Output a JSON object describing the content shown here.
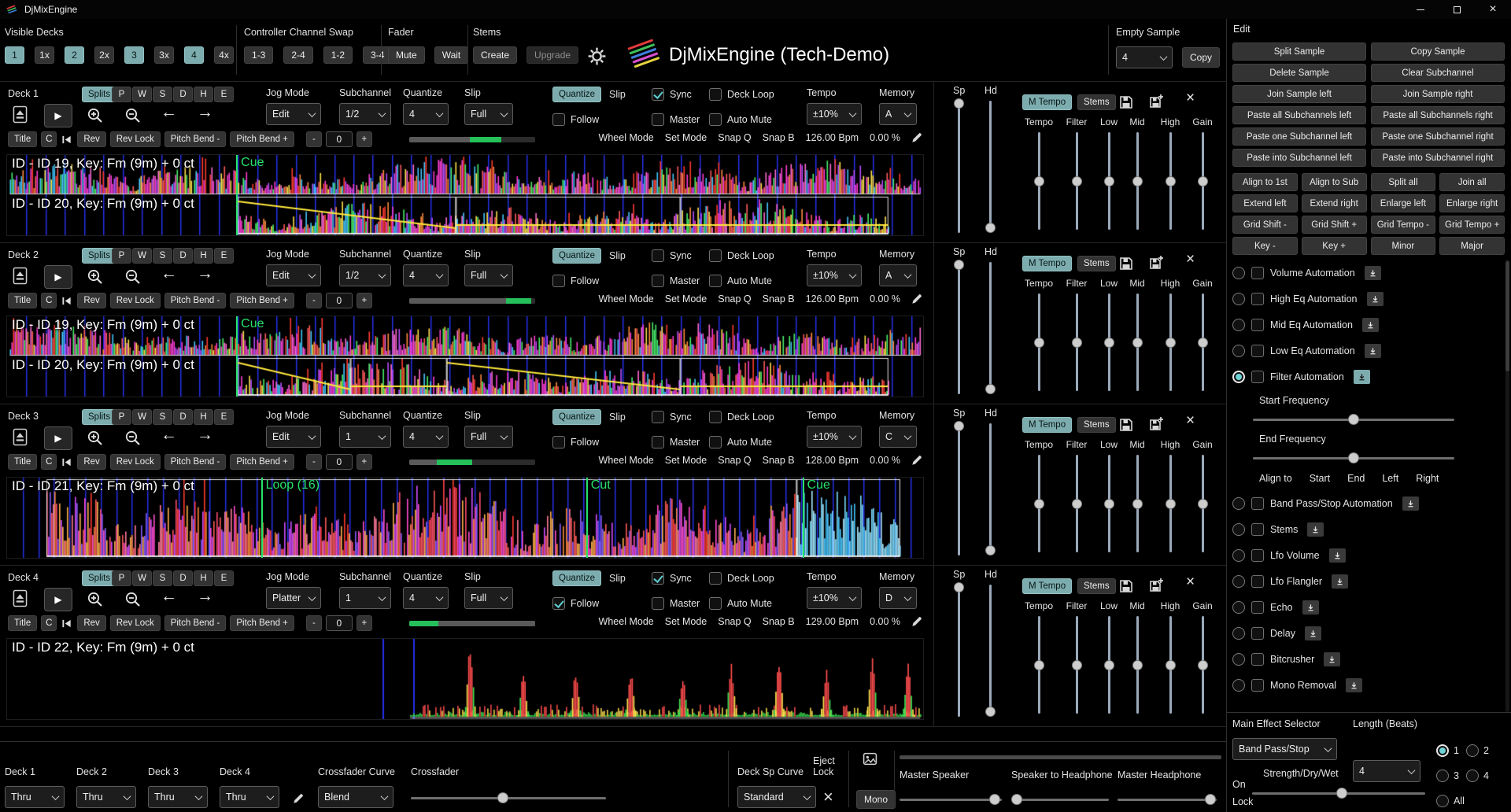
{
  "colors": {
    "accent": "#7cacae",
    "green": "#25c05a",
    "marker_green": "#27e26b",
    "grid_blue": "#2531e8",
    "yellow": "#ffe83d"
  },
  "icons": {
    "play": "▶",
    "close": "×",
    "arrow_left": "←",
    "arrow_right": "→"
  },
  "titlebar": {
    "title": "DjMixEngine"
  },
  "topbar": {
    "visible_decks": {
      "label": "Visible Decks",
      "buttons": [
        {
          "label": "1",
          "active": true
        },
        {
          "label": "1x",
          "active": false
        },
        {
          "label": "2",
          "active": true
        },
        {
          "label": "2x",
          "active": false
        },
        {
          "label": "3",
          "active": true
        },
        {
          "label": "3x",
          "active": false
        },
        {
          "label": "4",
          "active": true
        },
        {
          "label": "4x",
          "active": false
        }
      ]
    },
    "controller_swap": {
      "label": "Controller Channel Swap",
      "buttons": [
        "1-3",
        "2-4",
        "1-2",
        "3-4"
      ]
    },
    "fader": {
      "label": "Fader",
      "buttons": [
        "Mute",
        "Wait"
      ]
    },
    "stems": {
      "label": "Stems",
      "buttons": [
        {
          "label": "Create",
          "enabled": true
        },
        {
          "label": "Upgrade",
          "enabled": false
        }
      ]
    },
    "app_title": "DjMixEngine (Tech-Demo)",
    "empty_sample": {
      "label": "Empty Sample",
      "value": "4",
      "copy_label": "Copy"
    }
  },
  "deck_common": {
    "splits": "Splits",
    "letters": [
      "P",
      "W",
      "S",
      "D",
      "H",
      "E"
    ],
    "jog_mode_label": "Jog Mode",
    "subchannel_label": "Subchannel",
    "quantize_label": "Quantize",
    "slip_label": "Slip",
    "quantize_button": "Quantize",
    "slip_tag": "Slip",
    "sync": "Sync",
    "deck_loop": "Deck Loop",
    "follow": "Follow",
    "master": "Master",
    "auto_mute": "Auto Mute",
    "tempo_label": "Tempo",
    "memory_label": "Memory",
    "row3a": [
      "Title",
      "C"
    ],
    "row3b": [
      "Rev",
      "Rev Lock",
      "Pitch Bend -",
      "Pitch Bend +"
    ],
    "minus": "-",
    "pitch_value": "0",
    "plus": "+",
    "status": [
      "Wheel Mode",
      "Set Mode",
      "Snap Q",
      "Snap B"
    ],
    "mixer": {
      "sp": "Sp",
      "hd": "Hd",
      "m_tempo": "M Tempo",
      "stems": "Stems",
      "sliders": [
        "Tempo",
        "Filter",
        "Low",
        "Mid",
        "High",
        "Gain"
      ]
    },
    "mixer_positions": {
      "sp": 0.02,
      "hd": 0.96,
      "channels": 0.5
    }
  },
  "decks": [
    {
      "name": "Deck 1",
      "jog_mode": "Edit",
      "subchannel": "1/2",
      "quantize": "4",
      "slip": "Full",
      "sync": true,
      "deck_loop": false,
      "follow": false,
      "master": false,
      "auto_mute": false,
      "tempo_range": "±10%",
      "memory": "A",
      "bpm": "126.00 Bpm",
      "pitch_pct": "0.00 %",
      "progress_segments": [
        [
          0,
          0.48,
          "#5a5a5a"
        ],
        [
          0.48,
          0.73,
          "#25c05a"
        ],
        [
          0.73,
          1,
          "#2b2b2b"
        ]
      ],
      "waveform": {
        "type": "dual",
        "seed": 11,
        "grid_step": 0.021,
        "palette": [
          "#ff3fd8",
          "#ff3fd8",
          "#ff5a5a",
          "#ffe14d",
          "#49f06a",
          "#45c8ff",
          "#b84dff",
          "#ff8a3d",
          "#ff6ad5"
        ],
        "tracks": [
          {
            "label": "ID - ID 19, Key: Fm (9m) + 0 ct",
            "start": 0.003,
            "end": 0.997
          },
          {
            "label": "ID - ID 20, Key: Fm (9m) + 0 ct",
            "start": 0.252,
            "end": 0.962
          }
        ],
        "markers": [
          {
            "label": "Cue",
            "pos": 0.251,
            "track": 0
          }
        ],
        "regions": [
          {
            "track": 1,
            "start": 0.252,
            "end": 0.49,
            "auto": "down"
          },
          {
            "track": 1,
            "start": 0.49,
            "end": 0.735,
            "auto": "low"
          },
          {
            "track": 1,
            "start": 0.735,
            "end": 0.962,
            "auto": "low"
          }
        ]
      }
    },
    {
      "name": "Deck 2",
      "jog_mode": "Edit",
      "subchannel": "1/2",
      "quantize": "4",
      "slip": "Full",
      "sync": false,
      "deck_loop": false,
      "follow": false,
      "master": false,
      "auto_mute": false,
      "tempo_range": "±10%",
      "memory": "A",
      "bpm": "126.00 Bpm",
      "pitch_pct": "0.00 %",
      "progress_segments": [
        [
          0,
          0.77,
          "#5a5a5a"
        ],
        [
          0.77,
          0.97,
          "#25c05a"
        ],
        [
          0.97,
          1,
          "#2b2b2b"
        ]
      ],
      "waveform": {
        "type": "dual",
        "seed": 23,
        "grid_step": 0.021,
        "palette": [
          "#ff3fd8",
          "#ff3fd8",
          "#ff5a5a",
          "#ffe14d",
          "#49f06a",
          "#45c8ff",
          "#b84dff",
          "#ff8a3d",
          "#ff6ad5"
        ],
        "tracks": [
          {
            "label": "ID - ID 19, Key: Fm (9m) + 0 ct",
            "start": 0.003,
            "end": 0.997
          },
          {
            "label": "ID - ID 20, Key: Fm (9m) + 0 ct",
            "start": 0.252,
            "end": 0.962
          }
        ],
        "markers": [
          {
            "label": "Cue",
            "pos": 0.251,
            "track": 0
          }
        ],
        "regions": [
          {
            "track": 1,
            "start": 0.252,
            "end": 0.375,
            "auto": "down"
          },
          {
            "track": 1,
            "start": 0.375,
            "end": 0.48,
            "auto": "low"
          },
          {
            "track": 1,
            "start": 0.48,
            "end": 0.735,
            "auto": "down"
          },
          {
            "track": 1,
            "start": 0.735,
            "end": 0.962,
            "auto": "low"
          }
        ]
      }
    },
    {
      "name": "Deck 3",
      "jog_mode": "Edit",
      "subchannel": "1",
      "quantize": "4",
      "slip": "Full",
      "sync": false,
      "deck_loop": false,
      "follow": false,
      "master": false,
      "auto_mute": false,
      "tempo_range": "±10%",
      "memory": "C",
      "bpm": "128.00 Bpm",
      "pitch_pct": "0.00 %",
      "progress_segments": [
        [
          0,
          0.22,
          "#5a5a5a"
        ],
        [
          0.22,
          0.5,
          "#25c05a"
        ],
        [
          0.5,
          1,
          "#2b2b2b"
        ]
      ],
      "waveform": {
        "type": "single",
        "seed": 37,
        "grid_step": 0.017,
        "palette": [
          "#ff4d6d",
          "#ff8a3d",
          "#ffb14d",
          "#ff4dd2",
          "#d44dff",
          "#8a5cff",
          "#ff5a5a",
          "#ff7a9a"
        ],
        "tail": {
          "start": 0.862,
          "end": 0.975,
          "palette": [
            "#49c8ff",
            "#7adcff",
            "#a8e9ff"
          ]
        },
        "tracks": [
          {
            "label": "ID - ID 21, Key: Fm (9m) + 0 ct",
            "start": 0.043,
            "end": 0.975
          }
        ],
        "markers": [
          {
            "label": "Loop (16)",
            "pos": 0.278,
            "track": 0
          },
          {
            "label": "Cut",
            "pos": 0.633,
            "track": 0
          },
          {
            "label": "Cue",
            "pos": 0.869,
            "track": 0
          }
        ],
        "regions": [
          {
            "track": 0,
            "start": 0.043,
            "end": 0.862
          },
          {
            "track": 0,
            "start": 0.862,
            "end": 0.975
          }
        ]
      }
    },
    {
      "name": "Deck 4",
      "jog_mode": "Platter",
      "subchannel": "1",
      "quantize": "4",
      "slip": "Full",
      "sync": true,
      "deck_loop": false,
      "follow": true,
      "master": false,
      "auto_mute": false,
      "tempo_range": "±10%",
      "memory": "D",
      "bpm": "129.00 Bpm",
      "pitch_pct": "0.00 %",
      "progress_segments": [
        [
          0,
          0.23,
          "#25c05a"
        ],
        [
          0.23,
          1,
          "#5a5a5a"
        ]
      ],
      "waveform": {
        "type": "sparse",
        "seed": 51,
        "palette": [
          "#3ae052",
          "#ffe14d",
          "#ff4d4d"
        ],
        "grid_lines": [
          0.41,
          0.443
        ],
        "spikes": [
          0.505,
          0.563,
          0.62,
          0.68,
          0.737,
          0.79,
          0.842,
          0.894,
          0.944,
          0.983
        ],
        "tracks": [
          {
            "label": "ID - ID 22, Key: Fm (9m) + 0 ct",
            "start": 0.44,
            "end": 0.997
          }
        ],
        "markers": []
      }
    }
  ],
  "bottombar": {
    "deck_outputs": [
      {
        "label": "Deck 1",
        "value": "Thru"
      },
      {
        "label": "Deck 2",
        "value": "Thru"
      },
      {
        "label": "Deck 3",
        "value": "Thru"
      },
      {
        "label": "Deck 4",
        "value": "Thru"
      }
    ],
    "crossfader_curve": {
      "label": "Crossfader Curve",
      "value": "Blend"
    },
    "crossfader": {
      "label": "Crossfader",
      "value": 0.47
    },
    "deck_sp_curve": {
      "label": "Deck Sp Curve",
      "value": "Standard"
    },
    "eject_lock": {
      "line1": "Eject",
      "line2": "Lock"
    },
    "mono_label": "Mono",
    "master_speaker": {
      "label": "Master Speaker",
      "value": 0.93
    },
    "speaker_to_headphone": {
      "label": "Speaker to Headphone",
      "value": 0.06
    },
    "master_headphone": {
      "label": "Master Headphone",
      "value": 0.94
    }
  },
  "edit_panel": {
    "title": "Edit",
    "grid2": [
      "Split Sample",
      "Copy Sample",
      "Delete Sample",
      "Clear Subchannel",
      "Join Sample left",
      "Join Sample right",
      "Paste all Subchannels left",
      "Paste all Subchannels right",
      "Paste one Subchannel left",
      "Paste one Subchannel right",
      "Paste into Subchannel left",
      "Paste into Subchannel right"
    ],
    "grid4": [
      "Align to 1st",
      "Align to Sub",
      "Split all",
      "Join all",
      "Extend left",
      "Extend right",
      "Enlarge left",
      "Enlarge right",
      "Grid Shift -",
      "Grid Shift +",
      "Grid Tempo -",
      "Grid Tempo +",
      "Key -",
      "Key +",
      "Minor",
      "Major"
    ],
    "automations_top": [
      {
        "label": "Volume Automation",
        "radio": false
      },
      {
        "label": "High Eq Automation",
        "radio": false
      },
      {
        "label": "Mid Eq Automation",
        "radio": false
      },
      {
        "label": "Low Eq Automation",
        "radio": false
      },
      {
        "label": "Filter Automation",
        "radio": true
      }
    ],
    "start_frequency": {
      "label": "Start Frequency",
      "value": 0.5
    },
    "end_frequency": {
      "label": "End Frequency",
      "value": 0.5
    },
    "align_to": {
      "label": "Align to",
      "buttons": [
        "Start",
        "End",
        "Left",
        "Right"
      ]
    },
    "automations_bottom": [
      {
        "label": "Band Pass/Stop Automation"
      },
      {
        "label": "Stems"
      },
      {
        "label": "Lfo Volume"
      },
      {
        "label": "Lfo Flangler"
      },
      {
        "label": "Echo"
      },
      {
        "label": "Delay"
      },
      {
        "label": "Bitcrusher"
      },
      {
        "label": "Mono Removal"
      }
    ],
    "main_effect_label": "Main Effect Selector",
    "main_effect_value": "Band Pass/Stop",
    "length_label": "Length (Beats)",
    "length_value": "4",
    "slots": [
      {
        "label": "1",
        "selected": true
      },
      {
        "label": "2",
        "selected": false
      },
      {
        "label": "3",
        "selected": false
      },
      {
        "label": "4",
        "selected": false
      },
      {
        "label": "All",
        "selected": false
      }
    ],
    "on_label": "On",
    "strength_label": "Strength/Dry/Wet",
    "strength_value": 0.52,
    "lock_label": "Lock"
  }
}
